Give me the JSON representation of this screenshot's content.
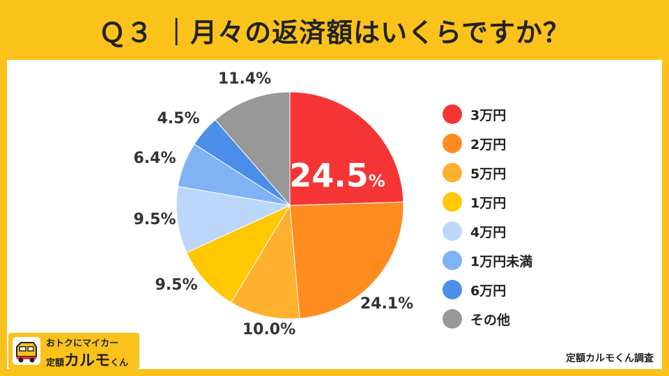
{
  "title": "Ｑ３ ｜月々の返済額はいくらですか？",
  "credit": "定額カルモくん調査",
  "logo": {
    "tagline": "おトクにマイカー",
    "prefix": "定額",
    "brand": "カルモ",
    "suffix": "くん"
  },
  "colors": {
    "background": "#FBC21B",
    "panel": "#FFFFFF"
  },
  "chart_data": {
    "type": "pie",
    "title": "月々の返済額はいくらですか？",
    "unit": "%",
    "start": "12 o'clock, clockwise",
    "slices": [
      {
        "label": "3万円",
        "value": 24.5,
        "display": "24.5",
        "color": "#F53535"
      },
      {
        "label": "2万円",
        "value": 24.1,
        "display": "24.1%",
        "color": "#FF8C1F"
      },
      {
        "label": "5万円",
        "value": 10.0,
        "display": "10.0%",
        "color": "#FFB02E"
      },
      {
        "label": "1万円",
        "value": 9.5,
        "display": "9.5%",
        "color": "#FFC800"
      },
      {
        "label": "4万円",
        "value": 9.5,
        "display": "9.5%",
        "color": "#BDD7FB"
      },
      {
        "label": "1万円未満",
        "value": 6.4,
        "display": "6.4%",
        "color": "#7FB3F5"
      },
      {
        "label": "6万円",
        "value": 4.5,
        "display": "4.5%",
        "color": "#4A8EE8"
      },
      {
        "label": "その他",
        "value": 11.4,
        "display": "11.4%",
        "color": "#989898"
      }
    ],
    "legend_position": "right"
  }
}
